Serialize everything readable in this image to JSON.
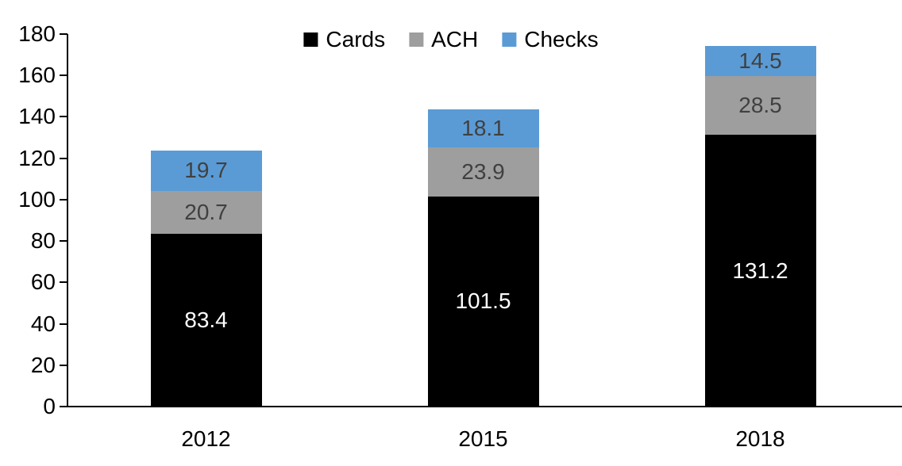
{
  "chart_data": {
    "type": "bar",
    "stacked": true,
    "categories": [
      "2012",
      "2015",
      "2018"
    ],
    "series": [
      {
        "name": "Cards",
        "color": "#000000",
        "label_color": "#ffffff",
        "values": [
          83.4,
          101.5,
          131.2
        ]
      },
      {
        "name": "ACH",
        "color": "#9e9e9e",
        "label_color": "#404040",
        "values": [
          20.7,
          23.9,
          28.5
        ]
      },
      {
        "name": "Checks",
        "color": "#5b9bd5",
        "label_color": "#404040",
        "values": [
          19.7,
          18.1,
          14.5
        ]
      }
    ],
    "totals": [
      123.8,
      143.5,
      174.2
    ],
    "ylim": [
      0,
      180
    ],
    "ytick_step": 20,
    "value_label_decimals": 1,
    "legend_position": "top-center",
    "legend_labels": [
      "Cards",
      "ACH",
      "Checks"
    ],
    "grid": false,
    "axis_color": "#000000"
  }
}
